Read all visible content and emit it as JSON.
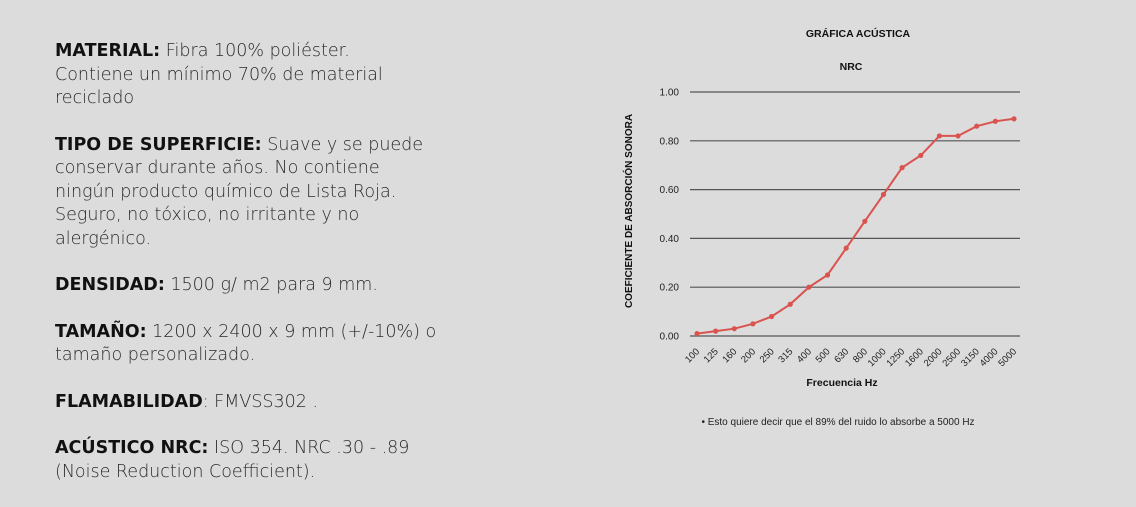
{
  "specs": [
    {
      "label": "MATERIAL:",
      "lines": [
        " Fibra 100% poliéster.",
        "Contiene un mínimo 70% de material",
        "reciclado"
      ]
    },
    {
      "label": "TIPO DE SUPERFICIE:",
      "lines": [
        " Suave y se puede",
        "conservar durante años. No contiene",
        "ningún producto químico de Lista Roja.",
        "Seguro, no tóxico, no irritante y  no",
        "alergénico."
      ]
    },
    {
      "label": "DENSIDAD:",
      "lines": [
        " 1500 g/ m2 para 9 mm."
      ]
    },
    {
      "label": "TAMAÑO:",
      "lines": [
        " 1200 x 2400 x 9 mm (+/-10%) o",
        "tamaño personalizado."
      ]
    },
    {
      "label": "FLAMABILIDAD",
      "lines": [
        ": FMVSS302 ."
      ]
    },
    {
      "label": "ACÚSTICO NRC:",
      "lines": [
        " ISO 354. NRC .30 - .89",
        "(Noise Reduction Coefficient)."
      ]
    }
  ],
  "chart_data": {
    "type": "line",
    "title": "GRÁFICA ACÚSTICA",
    "subtitle": "NRC",
    "xlabel": "Frecuencia Hz",
    "ylabel": "COEFICIENTE DE ABSORCIÓN SONORA",
    "categories": [
      "100",
      "125",
      "160",
      "200",
      "250",
      "315",
      "400",
      "500",
      "630",
      "800",
      "1000",
      "1250",
      "1600",
      "2000",
      "2500",
      "3150",
      "4000",
      "5000"
    ],
    "values": [
      0.01,
      0.02,
      0.03,
      0.05,
      0.08,
      0.13,
      0.2,
      0.25,
      0.36,
      0.47,
      0.58,
      0.69,
      0.74,
      0.82,
      0.82,
      0.86,
      0.88,
      0.89
    ],
    "yticks": [
      "0.00",
      "0.20",
      "0.40",
      "0.60",
      "0.80",
      "1.00"
    ],
    "ylim": [
      0,
      1
    ],
    "grid": true,
    "line_color": "#d9534f",
    "grid_color": "#555555",
    "footnote": "• Esto quiere decir que el 89% del ruido lo absorbe a 5000 Hz"
  }
}
